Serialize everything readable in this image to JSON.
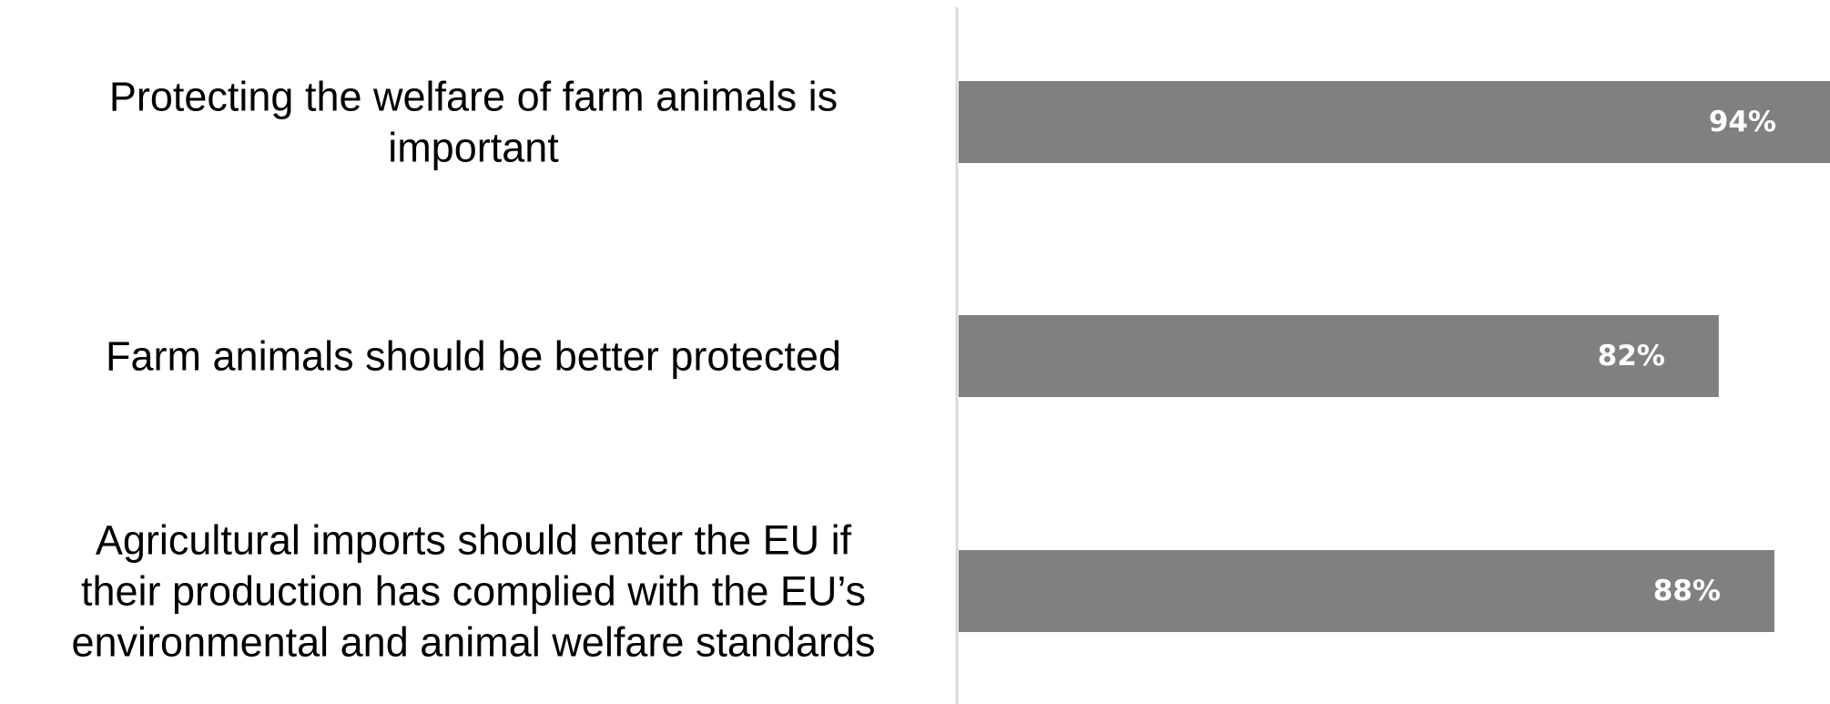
{
  "chart_data": {
    "type": "bar",
    "orientation": "horizontal",
    "categories": [
      "Protecting the welfare of farm animals is important",
      "Farm animals should be better protected",
      "Agricultural imports should enter the EU if their production has complied with the EU’s environmental and animal welfare standards"
    ],
    "category_lines": [
      [
        "Protecting the welfare of farm animals is",
        "important"
      ],
      [
        "Farm animals should be better protected"
      ],
      [
        "Agricultural imports should enter the EU if",
        "their production has complied with the EU’s",
        "environmental and animal welfare standards"
      ]
    ],
    "values": [
      94,
      82,
      88
    ],
    "value_labels": [
      "94%",
      "82%",
      "88%"
    ],
    "xlim": [
      0,
      94
    ],
    "grid": false,
    "legend": "none",
    "title": "",
    "xlabel": "",
    "ylabel": ""
  },
  "colors": {
    "bar": "#808080",
    "axis": "#d9d9d9",
    "label": "#000000",
    "value_label": "#ffffff"
  }
}
